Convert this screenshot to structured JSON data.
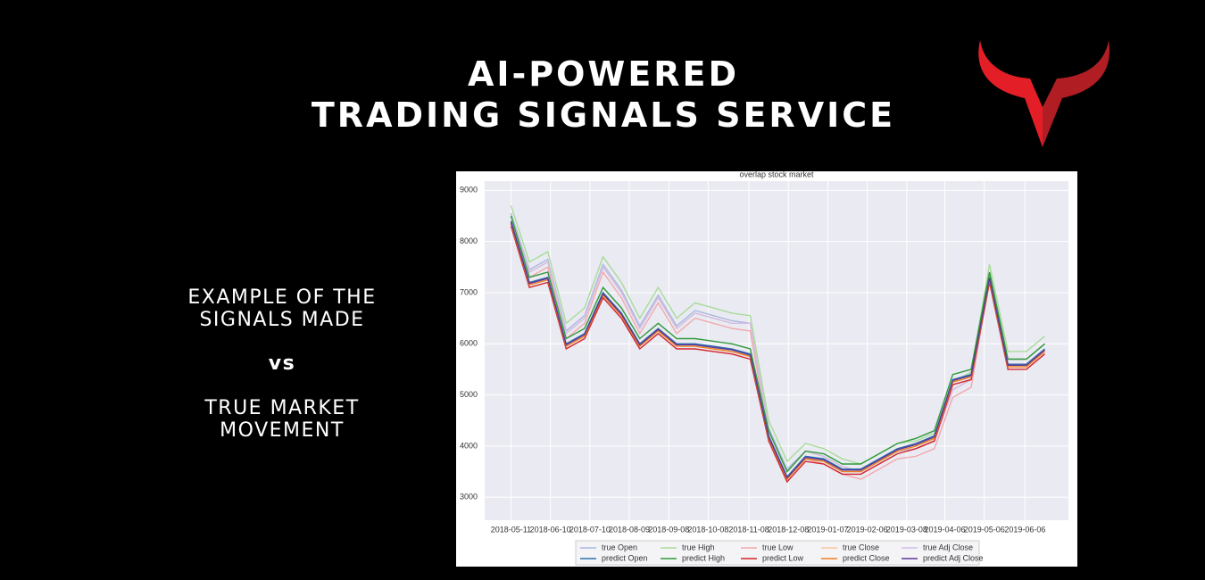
{
  "header": {
    "title": [
      "AI-POWERED",
      "TRADING SIGNALS SERVICE"
    ],
    "caption": [
      "EXAMPLE OF THE",
      "SIGNALS MADE",
      "vs",
      "TRUE MARKET",
      "MOVEMENT"
    ]
  },
  "chart_data": {
    "type": "line",
    "title": "overlap stock market",
    "x": [
      "2018-05-11",
      "2018-05-25",
      "2018-06-08",
      "2018-06-22",
      "2018-07-06",
      "2018-07-20",
      "2018-08-03",
      "2018-08-17",
      "2018-08-31",
      "2018-09-14",
      "2018-09-28",
      "2018-10-12",
      "2018-10-26",
      "2018-11-09",
      "2018-11-23",
      "2018-12-07",
      "2018-12-21",
      "2019-01-04",
      "2019-01-18",
      "2019-02-01",
      "2019-02-15",
      "2019-03-01",
      "2019-03-15",
      "2019-03-29",
      "2019-04-12",
      "2019-04-26",
      "2019-05-10",
      "2019-05-24",
      "2019-06-07",
      "2019-06-21"
    ],
    "xlim": [
      "2018-04-21",
      "2019-07-09"
    ],
    "xticks": [
      "2018-05-11",
      "2018-06-10",
      "2018-07-10",
      "2018-08-09",
      "2018-09-08",
      "2018-10-08",
      "2018-11-08",
      "2018-12-08",
      "2019-01-07",
      "2019-02-06",
      "2019-03-08",
      "2019-04-06",
      "2019-05-06",
      "2019-06-06"
    ],
    "ylim": [
      2550,
      9180
    ],
    "yticks": [
      3000,
      4000,
      5000,
      6000,
      7000,
      8000,
      9000
    ],
    "grid": true,
    "series": [
      {
        "name": "true Open",
        "color": "#a9b8e0",
        "values": [
          8550,
          7450,
          7650,
          6250,
          6550,
          7550,
          7050,
          6350,
          6950,
          6350,
          6650,
          6550,
          6450,
          6400,
          4350,
          3550,
          3900,
          3800,
          3600,
          3500,
          3700,
          3900,
          3950,
          4100,
          5100,
          5300,
          7400,
          5700,
          5700,
          6000
        ]
      },
      {
        "name": "predict Open",
        "color": "#2c6fb0",
        "values": [
          8400,
          7200,
          7300,
          6000,
          6200,
          7000,
          6600,
          6000,
          6300,
          6000,
          6000,
          5950,
          5900,
          5800,
          4200,
          3400,
          3800,
          3750,
          3550,
          3550,
          3750,
          3950,
          4050,
          4200,
          5300,
          5400,
          7300,
          5600,
          5600,
          5900
        ]
      },
      {
        "name": "true High",
        "color": "#a8dc98",
        "values": [
          8700,
          7600,
          7800,
          6400,
          6700,
          7700,
          7200,
          6500,
          7100,
          6500,
          6800,
          6700,
          6600,
          6550,
          4500,
          3700,
          4050,
          3950,
          3750,
          3650,
          3850,
          4050,
          4100,
          4250,
          5250,
          5450,
          7550,
          5850,
          5850,
          6150
        ]
      },
      {
        "name": "predict High",
        "color": "#2f9a3a",
        "values": [
          8500,
          7300,
          7400,
          6100,
          6300,
          7100,
          6700,
          6100,
          6400,
          6100,
          6100,
          6050,
          6000,
          5900,
          4300,
          3500,
          3900,
          3850,
          3650,
          3650,
          3850,
          4050,
          4150,
          4300,
          5400,
          5500,
          7400,
          5700,
          5700,
          6000
        ]
      },
      {
        "name": "true Low",
        "color": "#f2a9ae",
        "values": [
          8400,
          7300,
          7500,
          6100,
          6400,
          7400,
          6900,
          6200,
          6800,
          6200,
          6500,
          6400,
          6300,
          6250,
          4200,
          3400,
          3750,
          3650,
          3450,
          3350,
          3550,
          3750,
          3800,
          3950,
          4950,
          5150,
          7250,
          5550,
          5550,
          5850
        ]
      },
      {
        "name": "predict Low",
        "color": "#d3242c",
        "values": [
          8300,
          7100,
          7200,
          5900,
          6100,
          6900,
          6500,
          5900,
          6200,
          5900,
          5900,
          5850,
          5800,
          5700,
          4100,
          3300,
          3700,
          3650,
          3450,
          3450,
          3650,
          3850,
          3950,
          4100,
          5200,
          5300,
          7200,
          5500,
          5500,
          5800
        ]
      },
      {
        "name": "true Close",
        "color": "#f8c99a",
        "values": [
          8500,
          7400,
          7600,
          6200,
          6500,
          7500,
          7000,
          6300,
          6900,
          6300,
          6600,
          6500,
          6400,
          6400,
          4300,
          3500,
          3900,
          3800,
          3600,
          3500,
          3700,
          3900,
          3950,
          4100,
          5100,
          5300,
          7400,
          5700,
          5700,
          6000
        ]
      },
      {
        "name": "predict Close",
        "color": "#f07f1c",
        "values": [
          8350,
          7150,
          7250,
          5950,
          6150,
          6950,
          6550,
          5950,
          6250,
          5950,
          5950,
          5900,
          5850,
          5750,
          4150,
          3350,
          3750,
          3700,
          3500,
          3500,
          3700,
          3900,
          4000,
          4150,
          5250,
          5350,
          7250,
          5550,
          5550,
          5850
        ]
      },
      {
        "name": "true Adj Close",
        "color": "#d2bde6",
        "values": [
          8500,
          7400,
          7600,
          6200,
          6500,
          7500,
          7000,
          6300,
          6900,
          6300,
          6600,
          6500,
          6400,
          6400,
          4300,
          3500,
          3900,
          3800,
          3600,
          3500,
          3700,
          3900,
          3950,
          4100,
          5100,
          5300,
          7400,
          5700,
          5700,
          6000
        ]
      },
      {
        "name": "predict Adj Close",
        "color": "#5b3a94",
        "values": [
          8380,
          7180,
          7280,
          5980,
          6180,
          6980,
          6580,
          5980,
          6280,
          5980,
          5980,
          5930,
          5880,
          5780,
          4180,
          3380,
          3780,
          3730,
          3530,
          3530,
          3730,
          3930,
          4030,
          4180,
          5280,
          5380,
          7280,
          5580,
          5580,
          5880
        ]
      }
    ]
  }
}
